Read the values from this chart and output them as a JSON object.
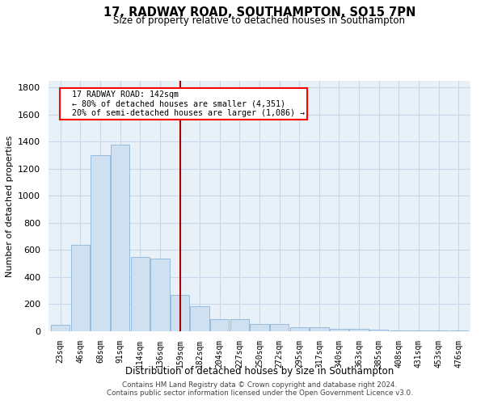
{
  "title1": "17, RADWAY ROAD, SOUTHAMPTON, SO15 7PN",
  "title2": "Size of property relative to detached houses in Southampton",
  "xlabel": "Distribution of detached houses by size in Southampton",
  "ylabel": "Number of detached properties",
  "annotation_title": "17 RADWAY ROAD: 142sqm",
  "annotation_line1": "← 80% of detached houses are smaller (4,351)",
  "annotation_line2": "20% of semi-detached houses are larger (1,086) →",
  "footer1": "Contains HM Land Registry data © Crown copyright and database right 2024.",
  "footer2": "Contains public sector information licensed under the Open Government Licence v3.0.",
  "bar_color": "#cfe0f0",
  "bar_edge_color": "#8ab4d8",
  "grid_color": "#c8d8e8",
  "vline_color": "#aa0000",
  "background_color": "#e8f0f8",
  "categories": [
    "23sqm",
    "46sqm",
    "68sqm",
    "91sqm",
    "114sqm",
    "136sqm",
    "159sqm",
    "182sqm",
    "204sqm",
    "227sqm",
    "250sqm",
    "272sqm",
    "295sqm",
    "317sqm",
    "340sqm",
    "363sqm",
    "385sqm",
    "408sqm",
    "431sqm",
    "453sqm",
    "476sqm"
  ],
  "values": [
    50,
    640,
    1300,
    1380,
    550,
    540,
    270,
    185,
    90,
    90,
    55,
    55,
    30,
    30,
    20,
    20,
    10,
    5,
    5,
    5,
    5
  ],
  "vline_x": 6.0,
  "ylim": [
    0,
    1850
  ],
  "yticks": [
    0,
    200,
    400,
    600,
    800,
    1000,
    1200,
    1400,
    1600,
    1800
  ]
}
